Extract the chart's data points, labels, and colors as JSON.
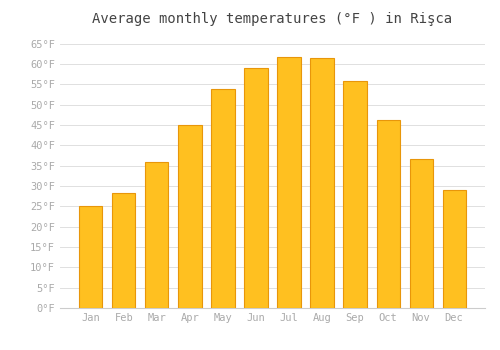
{
  "title": "Average monthly temperatures (°F ) in Rişca",
  "months": [
    "Jan",
    "Feb",
    "Mar",
    "Apr",
    "May",
    "Jun",
    "Jul",
    "Aug",
    "Sep",
    "Oct",
    "Nov",
    "Dec"
  ],
  "values": [
    25.2,
    28.4,
    35.8,
    45.0,
    53.8,
    59.0,
    61.7,
    61.5,
    55.8,
    46.2,
    36.7,
    29.1
  ],
  "bar_color_main": "#FFC020",
  "bar_color_edge": "#E8960A",
  "ylim": [
    0,
    68
  ],
  "yticks": [
    0,
    5,
    10,
    15,
    20,
    25,
    30,
    35,
    40,
    45,
    50,
    55,
    60,
    65
  ],
  "ytick_labels": [
    "0°F",
    "5°F",
    "10°F",
    "15°F",
    "20°F",
    "25°F",
    "30°F",
    "35°F",
    "40°F",
    "45°F",
    "50°F",
    "55°F",
    "60°F",
    "65°F"
  ],
  "background_color": "#ffffff",
  "plot_bg_color": "#ffffff",
  "grid_color": "#e0e0e0",
  "title_fontsize": 10,
  "tick_fontsize": 7.5,
  "tick_color": "#aaaaaa",
  "spine_color": "#cccccc"
}
